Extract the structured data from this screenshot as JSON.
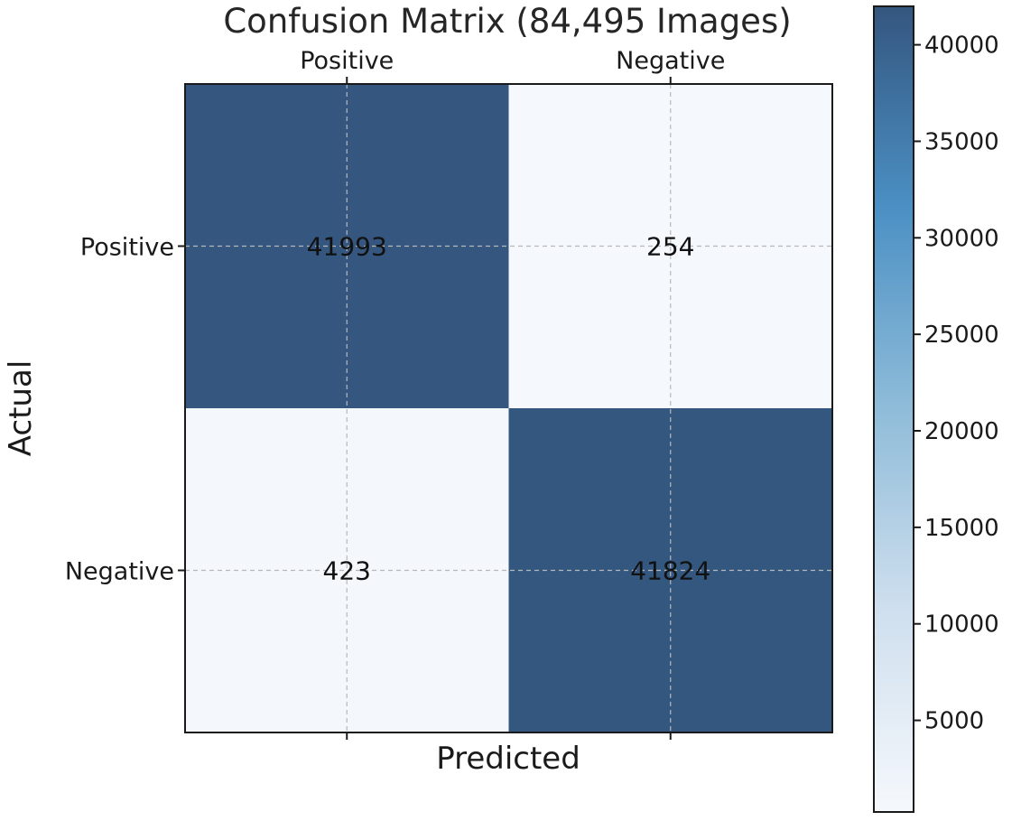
{
  "chart_data": {
    "type": "heatmap",
    "title": "Confusion Matrix (84,495 Images)",
    "xlabel": "Predicted",
    "ylabel": "Actual",
    "x_categories": [
      "Positive",
      "Negative"
    ],
    "y_categories": [
      "Positive",
      "Negative"
    ],
    "values": [
      [
        41993,
        254
      ],
      [
        423,
        41824
      ]
    ],
    "cell_labels": [
      [
        "41993",
        "254"
      ],
      [
        "423",
        "41824"
      ]
    ],
    "x_tick_position": "top",
    "grid": true,
    "colorbar": {
      "range": [
        254,
        41993
      ],
      "ticks": [
        5000,
        10000,
        15000,
        20000,
        25000,
        30000,
        35000,
        40000
      ],
      "tick_labels": [
        "5000",
        "10000",
        "15000",
        "20000",
        "25000",
        "30000",
        "35000",
        "40000"
      ],
      "colormap": "Blues",
      "alpha": 0.8,
      "location": "right"
    }
  },
  "colors": {
    "frame": "#1a1a1a",
    "grid": "#b8b8b8"
  }
}
